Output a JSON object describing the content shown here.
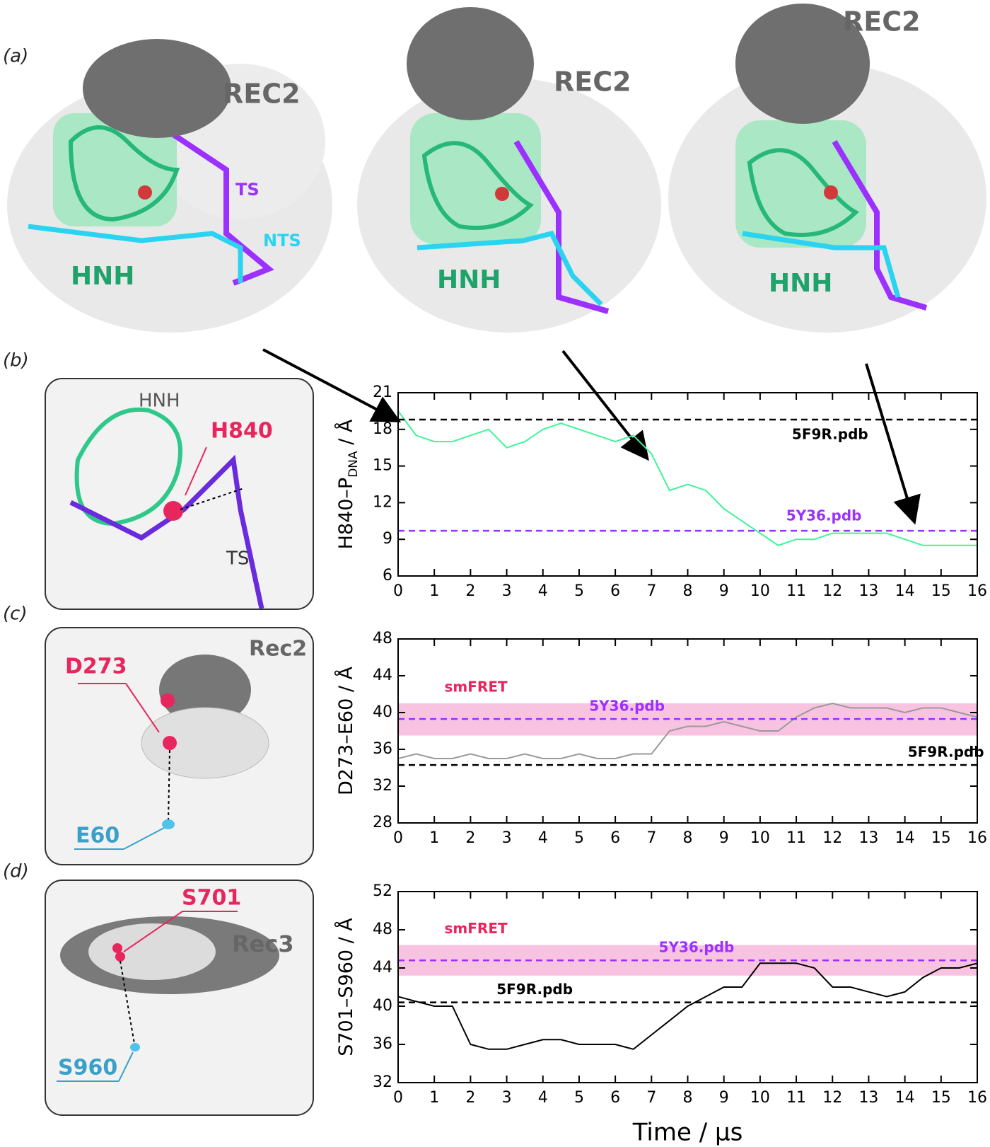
{
  "panels": {
    "a": "(a)",
    "b": "(b)",
    "c": "(c)",
    "d": "(d)"
  },
  "structures": [
    {
      "rec2": "REC2",
      "ts": "TS",
      "nts": "NTS",
      "hnh": "HNH"
    },
    {
      "rec2": "REC2",
      "hnh": "HNH"
    },
    {
      "rec2": "REC2",
      "hnh": "HNH"
    }
  ],
  "insets": [
    {
      "domain": "HNH",
      "residue": "H840",
      "strand": "TS"
    },
    {
      "domain": "Rec2",
      "residue": "D273",
      "partner": "E60"
    },
    {
      "domain": "Rec3",
      "residue": "S701",
      "partner": "S960"
    }
  ],
  "chart_data": [
    {
      "type": "line",
      "ylabel": [
        {
          "text": "H840–P"
        },
        {
          "text": "DNA",
          "subscript": true
        },
        {
          "text": " / Å"
        }
      ],
      "x": [
        0,
        0.5,
        1,
        1.5,
        2,
        2.5,
        3,
        3.5,
        4,
        4.5,
        5,
        5.5,
        6,
        6.5,
        7,
        7.5,
        8,
        8.5,
        9,
        9.5,
        10,
        10.5,
        11,
        11.5,
        12,
        12.5,
        13,
        13.5,
        14,
        14.5,
        15,
        15.5,
        16
      ],
      "series": [
        {
          "color": "#3ef598",
          "values": [
            19.5,
            17.5,
            17,
            17,
            17.5,
            18,
            16.5,
            17,
            18,
            18.5,
            18,
            17.5,
            17,
            17.5,
            16,
            13,
            13.5,
            13,
            11.5,
            10.5,
            9.5,
            8.5,
            9,
            9,
            9.5,
            9.5,
            9.5,
            9.5,
            9,
            8.5,
            8.5,
            8.5,
            8.5
          ]
        }
      ],
      "reference_lines": [
        {
          "label": "5F9R.pdb",
          "value": 18.8,
          "color": "#000000"
        },
        {
          "label": "5Y36.pdb",
          "value": 9.7,
          "color": "#9b30ff"
        }
      ],
      "xlim": [
        0,
        16
      ],
      "xticks": [
        0,
        1,
        2,
        3,
        4,
        5,
        6,
        7,
        8,
        9,
        10,
        11,
        12,
        13,
        14,
        15,
        16
      ],
      "ylim": [
        6,
        21
      ],
      "yticks": [
        6,
        9,
        12,
        15,
        18,
        21
      ]
    },
    {
      "type": "line",
      "ylabel": [
        {
          "text": "D273–E60 / Å"
        }
      ],
      "x": [
        0,
        0.5,
        1,
        1.5,
        2,
        2.5,
        3,
        3.5,
        4,
        4.5,
        5,
        5.5,
        6,
        6.5,
        7,
        7.5,
        8,
        8.5,
        9,
        9.5,
        10,
        10.5,
        11,
        11.5,
        12,
        12.5,
        13,
        13.5,
        14,
        14.5,
        15,
        15.5,
        16
      ],
      "series": [
        {
          "color": "#9a9a9a",
          "values": [
            35,
            35.5,
            35,
            35,
            35.5,
            35,
            35,
            35.5,
            35,
            35,
            35.5,
            35,
            35,
            35.5,
            35.5,
            38,
            38.5,
            38.5,
            39,
            38.5,
            38,
            38,
            39.5,
            40.5,
            41,
            40.5,
            40.5,
            40.5,
            40,
            40.5,
            40.5,
            40,
            39.5
          ]
        }
      ],
      "band": {
        "label": "smFRET",
        "range": [
          37.5,
          41
        ],
        "color": "#f7b8dc"
      },
      "reference_lines": [
        {
          "label": "5Y36.pdb",
          "value": 39.3,
          "color": "#9b30ff"
        },
        {
          "label": "5F9R.pdb",
          "value": 34.3,
          "color": "#000000"
        }
      ],
      "xlim": [
        0,
        16
      ],
      "xticks": [
        0,
        1,
        2,
        3,
        4,
        5,
        6,
        7,
        8,
        9,
        10,
        11,
        12,
        13,
        14,
        15,
        16
      ],
      "ylim": [
        28,
        48
      ],
      "yticks": [
        28,
        32,
        36,
        40,
        44,
        48
      ]
    },
    {
      "type": "line",
      "ylabel": [
        {
          "text": "S701–S960 / Å"
        }
      ],
      "xlabel": "Time / µs",
      "x": [
        0,
        0.5,
        1,
        1.5,
        2,
        2.5,
        3,
        3.5,
        4,
        4.5,
        5,
        5.5,
        6,
        6.5,
        7,
        7.5,
        8,
        8.5,
        9,
        9.5,
        10,
        10.5,
        11,
        11.5,
        12,
        12.5,
        13,
        13.5,
        14,
        14.5,
        15,
        15.5,
        16
      ],
      "series": [
        {
          "color": "#000000",
          "values": [
            41,
            40.5,
            40,
            40,
            36,
            35.5,
            35.5,
            36,
            36.5,
            36.5,
            36,
            36,
            36,
            35.5,
            37,
            38.5,
            40,
            41,
            42,
            42,
            44.5,
            44.5,
            44.5,
            44,
            42,
            42,
            41.5,
            41,
            41.5,
            43,
            44,
            44,
            44.5
          ]
        }
      ],
      "band": {
        "label": "smFRET",
        "range": [
          43.2,
          46.4
        ],
        "color": "#f7b8dc"
      },
      "reference_lines": [
        {
          "label": "5Y36.pdb",
          "value": 44.8,
          "color": "#9b30ff"
        },
        {
          "label": "5F9R.pdb",
          "value": 40.4,
          "color": "#000000"
        }
      ],
      "xlim": [
        0,
        16
      ],
      "xticks": [
        0,
        1,
        2,
        3,
        4,
        5,
        6,
        7,
        8,
        9,
        10,
        11,
        12,
        13,
        14,
        15,
        16
      ],
      "ylim": [
        32,
        52
      ],
      "yticks": [
        32,
        36,
        40,
        44,
        48,
        52
      ]
    }
  ]
}
